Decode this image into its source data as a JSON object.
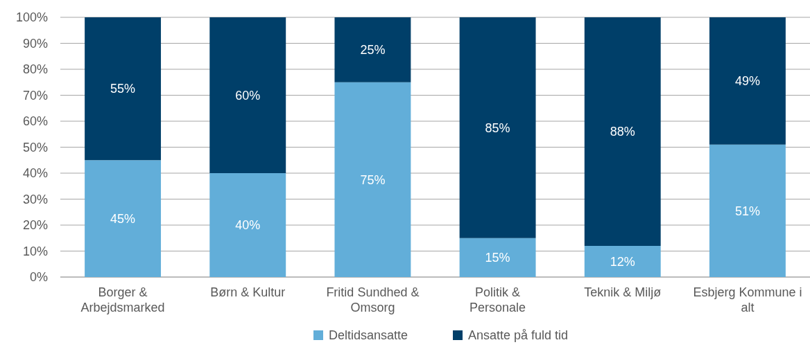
{
  "chart_data": {
    "type": "bar",
    "stacked": true,
    "categories": [
      "Borger & Arbejdsmarked",
      "Børn & Kultur",
      "Fritid Sundhed & Omsorg",
      "Politik & Personale",
      "Teknik & Miljø",
      "Esbjerg Kommune i alt"
    ],
    "series": [
      {
        "name": "Deltidsansatte",
        "color": "#62aed9",
        "values": [
          45,
          40,
          75,
          15,
          12,
          51
        ],
        "value_labels": [
          "45%",
          "40%",
          "75%",
          "15%",
          "12%",
          "51%"
        ]
      },
      {
        "name": "Ansatte på fuld tid",
        "color": "#003f69",
        "values": [
          55,
          60,
          25,
          85,
          88,
          49
        ],
        "value_labels": [
          "55%",
          "60%",
          "25%",
          "85%",
          "88%",
          "49%"
        ]
      }
    ],
    "ylim": [
      0,
      100
    ],
    "yticks": [
      {
        "value": 0,
        "label": "0%"
      },
      {
        "value": 10,
        "label": "10%"
      },
      {
        "value": 20,
        "label": "20%"
      },
      {
        "value": 30,
        "label": "30%"
      },
      {
        "value": 40,
        "label": "40%"
      },
      {
        "value": 50,
        "label": "50%"
      },
      {
        "value": 60,
        "label": "60%"
      },
      {
        "value": 70,
        "label": "70%"
      },
      {
        "value": 80,
        "label": "80%"
      },
      {
        "value": 90,
        "label": "90%"
      },
      {
        "value": 100,
        "label": "100%"
      }
    ],
    "grid": "y",
    "legend": "bottom"
  }
}
